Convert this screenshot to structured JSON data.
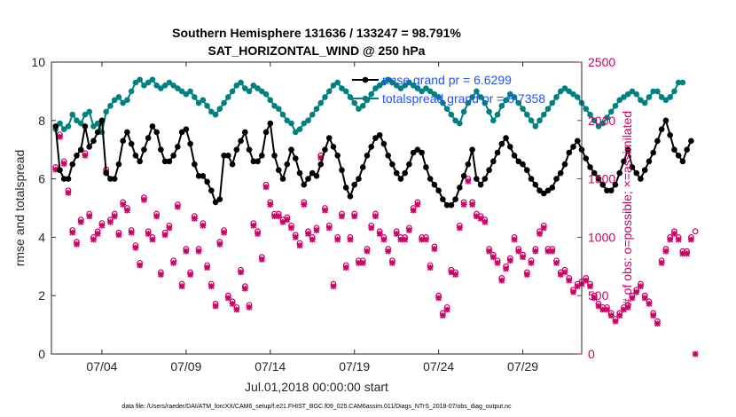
{
  "colors": {
    "rmse": "#000000",
    "totalspread": "#008080",
    "obs": "#cc0066",
    "legend_text": "#1f52ff"
  },
  "chart_data": {
    "type": "line",
    "title": "Southern Hemisphere 131636 / 133247 = 98.791%",
    "subtitle": "SAT_HORIZONTAL_WIND @ 250 hPa",
    "xlabel": "Jul.01,2018 00:00:00 start",
    "ylabel": "rmse and totalspread",
    "y2label": "# of obs: o=possible; ×=assimilated",
    "xlim": [
      1,
      32.5
    ],
    "ylim": [
      0,
      10
    ],
    "y2lim": [
      0,
      2500
    ],
    "x_ticks": [
      {
        "value": 4,
        "label": "07/04"
      },
      {
        "value": 9,
        "label": "07/09"
      },
      {
        "value": 14,
        "label": "07/14"
      },
      {
        "value": 19,
        "label": "07/19"
      },
      {
        "value": 24,
        "label": "07/24"
      },
      {
        "value": 29,
        "label": "07/29"
      }
    ],
    "y_ticks": [
      "0",
      "2",
      "4",
      "6",
      "8",
      "10"
    ],
    "y2_ticks": [
      "0",
      "500",
      "1000",
      "1500",
      "2000",
      "2500"
    ],
    "legend": {
      "placement": "top-right",
      "entries": [
        "rmse grand pr = 6.6299",
        "totalspread grand pr = 8.7358"
      ]
    },
    "footnote": "data file: /Users/raeder/DAI/ATM_forcXX/CAM6_setup/f.e21.FHIST_BGC.f09_025.CAM6assim.011/Diags_NTrS_2018-07/obs_diag_output.nc",
    "series": [
      {
        "name": "rmse",
        "axis": "left",
        "x_start": 1.25,
        "x_step": 0.25,
        "values": [
          7.8,
          6.3,
          6.0,
          6.0,
          6.5,
          6.8,
          7.0,
          7.8,
          7.1,
          7.3,
          7.6,
          8.0,
          6.2,
          6.0,
          6.0,
          6.5,
          7.3,
          7.6,
          7.2,
          6.8,
          6.6,
          7.0,
          7.4,
          7.8,
          7.6,
          7.0,
          6.6,
          6.6,
          6.8,
          7.1,
          7.6,
          7.7,
          7.2,
          6.5,
          6.1,
          6.1,
          5.9,
          5.6,
          5.2,
          5.3,
          6.8,
          6.8,
          6.5,
          7.0,
          7.3,
          7.6,
          7.0,
          6.6,
          6.6,
          6.8,
          7.6,
          7.9,
          6.8,
          6.3,
          6.0,
          6.5,
          7.0,
          6.7,
          6.2,
          5.8,
          6.0,
          6.2,
          6.1,
          6.5,
          7.0,
          7.4,
          7.1,
          6.8,
          6.3,
          5.7,
          5.4,
          5.8,
          6.0,
          6.4,
          6.8,
          7.1,
          7.4,
          7.5,
          7.2,
          6.8,
          6.5,
          6.2,
          6.0,
          6.2,
          6.5,
          6.9,
          7.0,
          6.9,
          6.4,
          6.0,
          5.8,
          5.6,
          5.3,
          5.1,
          5.1,
          5.3,
          5.7,
          6.1,
          6.5,
          7.0,
          6.0,
          5.8,
          6.0,
          6.3,
          6.6,
          6.9,
          7.2,
          7.4,
          7.1,
          6.8,
          6.6,
          6.5,
          6.3,
          6.0,
          5.8,
          5.6,
          5.5,
          5.6,
          5.7,
          6.0,
          6.2,
          6.5,
          6.9,
          7.1,
          7.3,
          7.0,
          6.7,
          6.4,
          6.2,
          6.0,
          5.8,
          5.6,
          5.6,
          5.8,
          6.2,
          6.6,
          7.0,
          6.4,
          6.2,
          6.0,
          6.3,
          6.6,
          6.9,
          7.3,
          7.7,
          8.0,
          7.5,
          7.0,
          6.8,
          6.6,
          7.0,
          7.3
        ]
      },
      {
        "name": "totalspread",
        "axis": "left",
        "x_start": 1.25,
        "x_step": 0.25,
        "values": [
          7.7,
          7.9,
          7.7,
          7.8,
          8.2,
          8.0,
          7.9,
          8.2,
          8.3,
          7.8,
          7.9,
          7.6,
          8.3,
          8.5,
          8.7,
          8.8,
          8.6,
          8.7,
          9.0,
          9.3,
          9.4,
          9.2,
          9.3,
          9.4,
          9.2,
          9.1,
          9.2,
          9.3,
          9.2,
          9.1,
          9.0,
          8.9,
          9.0,
          8.8,
          8.6,
          8.7,
          8.5,
          8.3,
          8.2,
          8.4,
          8.6,
          8.8,
          9.0,
          9.2,
          9.3,
          9.1,
          9.0,
          9.2,
          9.1,
          9.0,
          8.9,
          8.7,
          8.5,
          8.4,
          8.2,
          8.0,
          7.9,
          7.6,
          7.7,
          7.9,
          8.0,
          8.2,
          8.4,
          8.6,
          8.8,
          9.0,
          9.2,
          9.3,
          9.1,
          9.0,
          8.8,
          8.6,
          8.4,
          8.5,
          8.7,
          8.9,
          9.1,
          9.2,
          9.3,
          9.4,
          9.3,
          9.2,
          9.1,
          9.2,
          9.3,
          9.2,
          9.1,
          9.0,
          9.1,
          9.0,
          8.9,
          8.8,
          8.6,
          8.4,
          8.2,
          8.0,
          7.9,
          8.3,
          8.6,
          8.8,
          9.0,
          8.8,
          8.6,
          8.3,
          8.0,
          8.2,
          8.5,
          8.7,
          8.9,
          8.8,
          8.6,
          8.4,
          8.2,
          8.0,
          7.8,
          8.0,
          8.2,
          8.4,
          8.6,
          8.8,
          9.0,
          9.1,
          9.0,
          8.9,
          8.8,
          8.6,
          8.4,
          8.2,
          8.0,
          7.8,
          7.9,
          8.1,
          8.3,
          8.5,
          8.7,
          8.8,
          8.9,
          9.0,
          8.9,
          8.7,
          8.6,
          8.8,
          9.0,
          9.0,
          8.8,
          8.7,
          8.8,
          9.0,
          9.3,
          9.3
        ]
      },
      {
        "name": "obs_possible",
        "axis": "right",
        "marker": "o",
        "x_start": 1.25,
        "x_step": 0.25,
        "values": [
          1600,
          1880,
          1650,
          1400,
          1060,
          960,
          1150,
          1720,
          1200,
          1000,
          1050,
          1120,
          1580,
          1150,
          1200,
          1040,
          1300,
          1250,
          1060,
          930,
          780,
          1340,
          1050,
          1000,
          1200,
          700,
          1040,
          1100,
          800,
          1280,
          600,
          900,
          700,
          1180,
          900,
          1120,
          760,
          600,
          430,
          960,
          1060,
          500,
          450,
          400,
          720,
          580,
          420,
          1120,
          1050,
          830,
          1450,
          1300,
          1200,
          1200,
          1150,
          1170,
          1100,
          1020,
          950,
          1300,
          1050,
          1000,
          1080,
          1700,
          1250,
          1100,
          600,
          1000,
          1200,
          760,
          1000,
          1200,
          800,
          800,
          900,
          1100,
          1200,
          1050,
          1000,
          900,
          800,
          1050,
          1000,
          1000,
          1080,
          1250,
          1300,
          1000,
          1000,
          760,
          920,
          500,
          350,
          400,
          720,
          700,
          1100,
          1300,
          1500,
          1300,
          1200,
          1180,
          1150,
          900,
          850,
          800,
          650,
          750,
          820,
          1000,
          900,
          850,
          700,
          800,
          900,
          1050,
          1100,
          900,
          900,
          800,
          700,
          720,
          650,
          550,
          600,
          620,
          650,
          600,
          500,
          430,
          400,
          400,
          350,
          300,
          350,
          400,
          420,
          500,
          550,
          600,
          500,
          450,
          350,
          280,
          800,
          900,
          1000,
          1050,
          1000,
          880,
          880,
          1000,
          1050
        ]
      },
      {
        "name": "obs_assimilated",
        "axis": "right",
        "marker": "x",
        "x_start": 1.25,
        "x_step": 0.25,
        "values": [
          1580,
          1860,
          1630,
          1380,
          1040,
          940,
          1130,
          1700,
          1180,
          980,
          1030,
          1100,
          1560,
          1130,
          1180,
          1020,
          1280,
          1230,
          1040,
          910,
          760,
          1320,
          1030,
          980,
          1180,
          680,
          1020,
          1080,
          780,
          1260,
          580,
          880,
          680,
          1160,
          880,
          1100,
          740,
          580,
          410,
          940,
          1040,
          480,
          430,
          380,
          700,
          560,
          400,
          1100,
          1030,
          810,
          1430,
          1280,
          1180,
          1180,
          1130,
          1150,
          1080,
          1000,
          930,
          1280,
          1030,
          980,
          1060,
          1680,
          1230,
          1080,
          580,
          980,
          1180,
          740,
          980,
          1180,
          780,
          780,
          880,
          1080,
          1180,
          1030,
          980,
          880,
          780,
          1030,
          980,
          980,
          1060,
          1230,
          1280,
          980,
          980,
          740,
          900,
          480,
          330,
          380,
          700,
          680,
          1080,
          1280,
          1480,
          1280,
          1180,
          1160,
          1130,
          880,
          830,
          780,
          630,
          730,
          800,
          980,
          880,
          830,
          680,
          780,
          880,
          1030,
          1080,
          880,
          880,
          780,
          680,
          700,
          630,
          530,
          580,
          600,
          630,
          580,
          480,
          410,
          380,
          380,
          330,
          280,
          330,
          380,
          400,
          480,
          530,
          580,
          480,
          430,
          330,
          260,
          780,
          880,
          980,
          1030,
          980,
          860,
          860,
          980,
          0
        ]
      }
    ]
  }
}
